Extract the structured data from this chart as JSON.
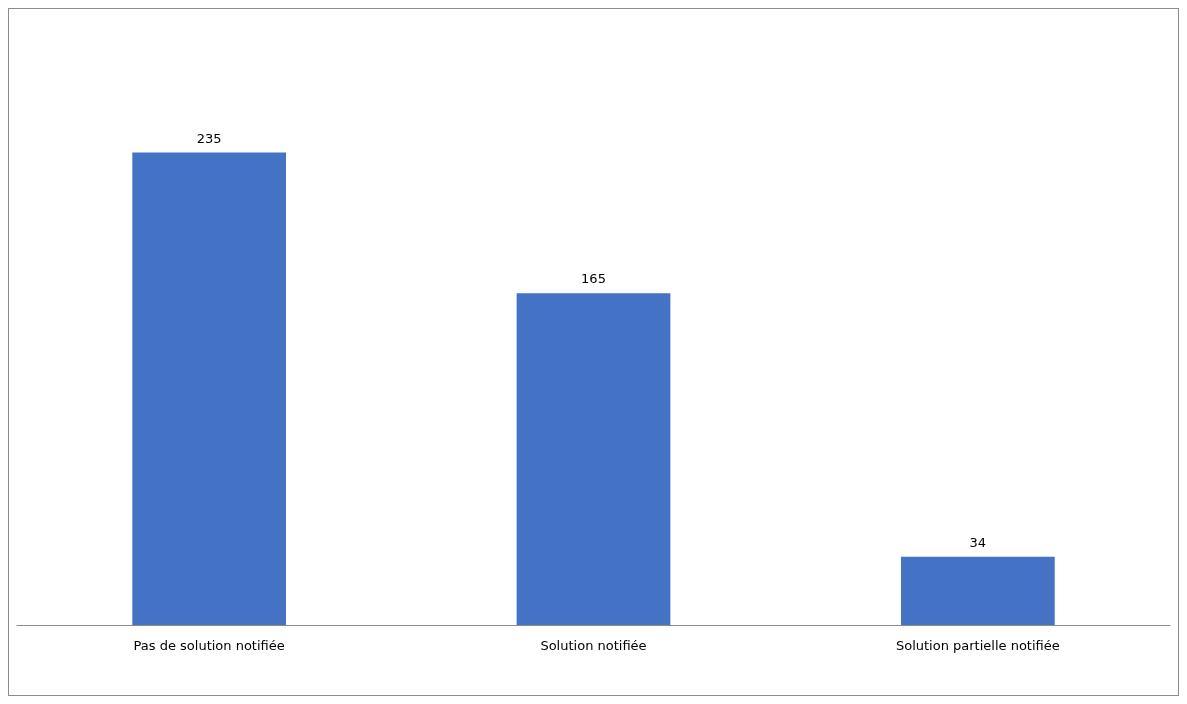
{
  "chart_data": {
    "type": "bar",
    "categories": [
      "Pas de solution notifiée",
      "Solution notifiée",
      "Solution partielle notifiée"
    ],
    "values": [
      235,
      165,
      34
    ],
    "color": "#4472c4",
    "data_labels": true
  }
}
